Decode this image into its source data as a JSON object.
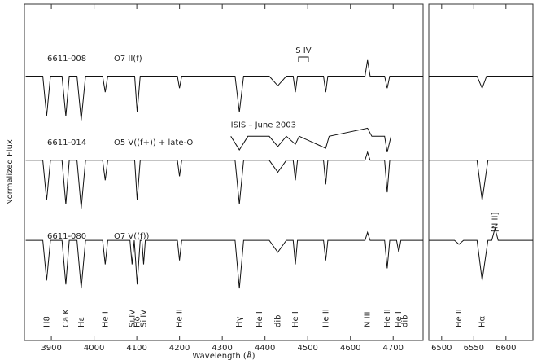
{
  "chart_data": [
    {
      "type": "line",
      "x_label": "Wavelength (Å)",
      "y_label": "Normalized Flux",
      "xlim": [
        3837,
        4770
      ],
      "ylim": [
        0,
        4.2
      ],
      "xticks": [
        3900,
        4000,
        4100,
        4200,
        4300,
        4400,
        4500,
        4600,
        4700
      ],
      "series": [
        {
          "name": "6611-008",
          "spectral_type": "O7 II(f)",
          "color": "#111",
          "x": [
            3840,
            3880,
            3889,
            3898,
            3925,
            3934,
            3942,
            3960,
            3970,
            3980,
            4020,
            4026,
            4032,
            4095,
            4101,
            4108,
            4195,
            4200,
            4205,
            4330,
            4340,
            4350,
            4410,
            4430,
            4450,
            4466,
            4471,
            4476,
            4537,
            4542,
            4547,
            4634,
            4640,
            4646,
            4680,
            4686,
            4692,
            4770
          ],
          "values": [
            3.3,
            3.3,
            2.8,
            3.3,
            3.3,
            2.8,
            3.3,
            3.3,
            2.75,
            3.3,
            3.3,
            3.1,
            3.3,
            3.3,
            2.85,
            3.3,
            3.3,
            3.15,
            3.3,
            3.3,
            2.85,
            3.3,
            3.3,
            3.18,
            3.3,
            3.3,
            3.1,
            3.3,
            3.3,
            3.1,
            3.3,
            3.3,
            3.5,
            3.3,
            3.3,
            3.15,
            3.3,
            3.3
          ]
        },
        {
          "name": "6611-014",
          "spectral_type": "O5 V((f+)) + late-O",
          "color": "#111",
          "x": [
            3840,
            3880,
            3889,
            3898,
            3925,
            3934,
            3942,
            3960,
            3970,
            3980,
            4020,
            4026,
            4032,
            4095,
            4101,
            4108,
            4195,
            4200,
            4205,
            4330,
            4340,
            4350,
            4410,
            4430,
            4450,
            4466,
            4471,
            4476,
            4537,
            4542,
            4547,
            4634,
            4640,
            4646,
            4680,
            4686,
            4692,
            4770
          ],
          "values": [
            2.25,
            2.25,
            1.75,
            2.25,
            2.25,
            1.7,
            2.25,
            2.25,
            1.65,
            2.25,
            2.25,
            2.0,
            2.25,
            2.25,
            1.75,
            2.25,
            2.25,
            2.05,
            2.25,
            2.25,
            1.7,
            2.25,
            2.25,
            2.1,
            2.25,
            2.25,
            2.0,
            2.25,
            2.25,
            1.95,
            2.25,
            2.25,
            2.35,
            2.25,
            2.25,
            1.85,
            2.25,
            2.25
          ]
        },
        {
          "name": "6611-080",
          "spectral_type": "O7 V((f))",
          "color": "#111",
          "x": [
            3840,
            3880,
            3889,
            3898,
            3925,
            3934,
            3942,
            3960,
            3970,
            3980,
            4020,
            4026,
            4032,
            4084,
            4089,
            4094,
            4101,
            4108,
            4112,
            4116,
            4120,
            4195,
            4200,
            4205,
            4330,
            4340,
            4350,
            4410,
            4430,
            4450,
            4466,
            4471,
            4476,
            4537,
            4542,
            4547,
            4634,
            4640,
            4646,
            4680,
            4686,
            4692,
            4708,
            4713,
            4718,
            4770
          ],
          "values": [
            1.25,
            1.25,
            0.75,
            1.25,
            1.25,
            0.7,
            1.25,
            1.25,
            0.65,
            1.25,
            1.25,
            0.95,
            1.25,
            1.25,
            0.95,
            1.25,
            0.7,
            1.25,
            1.25,
            0.95,
            1.25,
            1.25,
            1.0,
            1.25,
            1.25,
            0.65,
            1.25,
            1.25,
            1.1,
            1.25,
            1.25,
            0.95,
            1.25,
            1.25,
            1.0,
            1.25,
            1.25,
            1.35,
            1.25,
            1.25,
            0.9,
            1.25,
            1.25,
            1.1,
            1.25,
            1.25
          ]
        },
        {
          "name": "ISIS – June 2003",
          "color": "#111",
          "x": [
            4320,
            4340,
            4360,
            4410,
            4430,
            4450,
            4471,
            4480,
            4542,
            4550,
            4640,
            4650,
            4680,
            4686,
            4695
          ],
          "values": [
            2.55,
            2.38,
            2.55,
            2.55,
            2.42,
            2.55,
            2.45,
            2.55,
            2.4,
            2.55,
            2.65,
            2.55,
            2.55,
            2.35,
            2.55
          ]
        }
      ],
      "line_labels": [
        {
          "label": "H8",
          "x": 3889
        },
        {
          "label": "Ca K",
          "x": 3934
        },
        {
          "label": "Hε",
          "x": 3970
        },
        {
          "label": "He I",
          "x": 4026
        },
        {
          "label": "Si IV",
          "x": 4089
        },
        {
          "label": "Hδ",
          "x": 4101
        },
        {
          "label": "Si IV",
          "x": 4116
        },
        {
          "label": "He II",
          "x": 4200
        },
        {
          "label": "Hγ",
          "x": 4340
        },
        {
          "label": "He I",
          "x": 4387
        },
        {
          "label": "dib",
          "x": 4430
        },
        {
          "label": "He I",
          "x": 4471
        },
        {
          "label": "He II",
          "x": 4542
        },
        {
          "label": "N III",
          "x": 4640
        },
        {
          "label": "He II",
          "x": 4686
        },
        {
          "label": "He I",
          "x": 4713
        },
        {
          "label": "dib",
          "x": 4727
        }
      ],
      "annotations": [
        {
          "label": "S IV",
          "x": 4490
        }
      ]
    },
    {
      "type": "line",
      "xlim": [
        6480,
        6642
      ],
      "ylim": [
        0,
        4.2
      ],
      "xticks": [
        6500,
        6550,
        6600
      ],
      "series": [
        {
          "color": "#111",
          "x": [
            6480,
            6555,
            6563,
            6570,
            6642
          ],
          "values": [
            3.3,
            3.3,
            3.15,
            3.3,
            3.3
          ]
        },
        {
          "color": "#111",
          "x": [
            6480,
            6555,
            6563,
            6572,
            6642
          ],
          "values": [
            2.25,
            2.25,
            1.75,
            2.25,
            2.25
          ]
        },
        {
          "color": "#111",
          "x": [
            6480,
            6520,
            6527,
            6534,
            6555,
            6563,
            6572,
            6578,
            6583,
            6588,
            6642
          ],
          "values": [
            1.25,
            1.25,
            1.2,
            1.25,
            1.25,
            0.75,
            1.25,
            1.25,
            1.4,
            1.25,
            1.25
          ]
        }
      ],
      "line_labels": [
        {
          "label": "He II",
          "x": 6527
        },
        {
          "label": "Hα",
          "x": 6563
        }
      ],
      "annotations": [
        {
          "label": "[N II]",
          "x": 6583
        }
      ]
    }
  ]
}
